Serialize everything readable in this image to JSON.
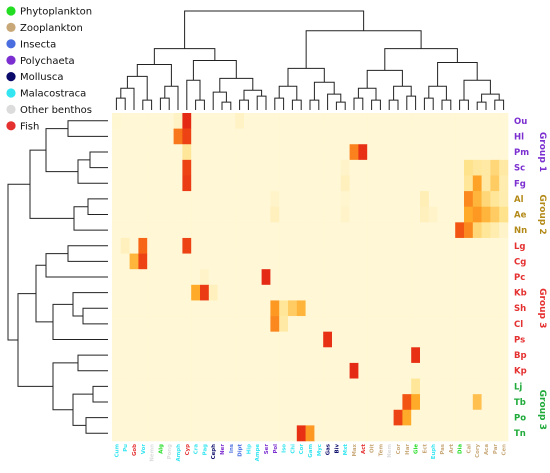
{
  "legend": [
    {
      "label": "Phytoplankton",
      "color": "#22dd22"
    },
    {
      "label": "Zooplankton",
      "color": "#c8a878"
    },
    {
      "label": "Insecta",
      "color": "#4a6ee0"
    },
    {
      "label": "Polychaeta",
      "color": "#7b2fd0"
    },
    {
      "label": "Mollusca",
      "color": "#0a0a6a"
    },
    {
      "label": "Malacostraca",
      "color": "#33e5f0"
    },
    {
      "label": "Other benthos",
      "color": "#dcdcdc"
    },
    {
      "label": "Fish",
      "color": "#e53030"
    }
  ],
  "chart_data": {
    "type": "heatmap",
    "title": "",
    "xlabel": "",
    "ylabel": "",
    "grid": false,
    "columns": [
      {
        "label": "Cum",
        "group": "Malacostraca"
      },
      {
        "label": "Pu",
        "group": "Malacostraca"
      },
      {
        "label": "Gob",
        "group": "Fish"
      },
      {
        "label": "Vor",
        "group": "Malacostraca"
      },
      {
        "label": "Nemn",
        "group": "Other benthos"
      },
      {
        "label": "Alg",
        "group": "Phytoplankton"
      },
      {
        "label": "Pong",
        "group": "Other benthos"
      },
      {
        "label": "Amph",
        "group": "Malacostraca"
      },
      {
        "label": "Cyp",
        "group": "Fish"
      },
      {
        "label": "Cra",
        "group": "Malacostraca"
      },
      {
        "label": "Pag",
        "group": "Malacostraca"
      },
      {
        "label": "Ceph",
        "group": "Mollusca"
      },
      {
        "label": "Ner",
        "group": "Polychaeta"
      },
      {
        "label": "Ins",
        "group": "Insecta"
      },
      {
        "label": "Dipt",
        "group": "Insecta"
      },
      {
        "label": "Hip",
        "group": "Malacostraca"
      },
      {
        "label": "Ampe",
        "group": "Malacostraca"
      },
      {
        "label": "Ser",
        "group": "Polychaeta"
      },
      {
        "label": "Pol",
        "group": "Polychaeta"
      },
      {
        "label": "Iso",
        "group": "Malacostraca"
      },
      {
        "label": "Chi",
        "group": "Malacostraca"
      },
      {
        "label": "Cor",
        "group": "Malacostraca"
      },
      {
        "label": "Gam",
        "group": "Malacostraca"
      },
      {
        "label": "Myc",
        "group": "Malacostraca"
      },
      {
        "label": "Gas",
        "group": "Mollusca"
      },
      {
        "label": "Biv",
        "group": "Mollusca"
      },
      {
        "label": "Mxt",
        "group": "Malacostraca"
      },
      {
        "label": "Max",
        "group": "Zooplankton"
      },
      {
        "label": "Act",
        "group": "Fish"
      },
      {
        "label": "Oit",
        "group": "Zooplankton"
      },
      {
        "label": "Tem",
        "group": "Zooplankton"
      },
      {
        "label": "Nem",
        "group": "Other benthos"
      },
      {
        "label": "Cor",
        "group": "Zooplankton"
      },
      {
        "label": "Har",
        "group": "Zooplankton"
      },
      {
        "label": "Gle",
        "group": "Phytoplankton"
      },
      {
        "label": "Ect",
        "group": "Zooplankton"
      },
      {
        "label": "Euph",
        "group": "Malacostraca"
      },
      {
        "label": "Pas",
        "group": "Zooplankton"
      },
      {
        "label": "Art",
        "group": "Zooplankton"
      },
      {
        "label": "Dia",
        "group": "Phytoplankton"
      },
      {
        "label": "Cal",
        "group": "Zooplankton"
      },
      {
        "label": "Cory",
        "group": "Zooplankton"
      },
      {
        "label": "Aca",
        "group": "Zooplankton"
      },
      {
        "label": "Par",
        "group": "Zooplankton"
      },
      {
        "label": "Cen",
        "group": "Zooplankton"
      }
    ],
    "rows": [
      {
        "label": "Ou",
        "color": "#7b2fd0"
      },
      {
        "label": "Hl",
        "color": "#7b2fd0"
      },
      {
        "label": "Pm",
        "color": "#7b2fd0"
      },
      {
        "label": "Sc",
        "color": "#7b2fd0"
      },
      {
        "label": "Fg",
        "color": "#7b2fd0"
      },
      {
        "label": "Al",
        "color": "#b38a18"
      },
      {
        "label": "Ae",
        "color": "#b38a18"
      },
      {
        "label": "Nn",
        "color": "#b38a18"
      },
      {
        "label": "Lg",
        "color": "#e53030"
      },
      {
        "label": "Cg",
        "color": "#e53030"
      },
      {
        "label": "Pc",
        "color": "#e53030"
      },
      {
        "label": "Kb",
        "color": "#e53030"
      },
      {
        "label": "Sh",
        "color": "#e53030"
      },
      {
        "label": "Cl",
        "color": "#e53030"
      },
      {
        "label": "Ps",
        "color": "#e53030"
      },
      {
        "label": "Bp",
        "color": "#e53030"
      },
      {
        "label": "Kp",
        "color": "#e53030"
      },
      {
        "label": "Lj",
        "color": "#1faa3a"
      },
      {
        "label": "Tb",
        "color": "#1faa3a"
      },
      {
        "label": "Po",
        "color": "#1faa3a"
      },
      {
        "label": "Tn",
        "color": "#1faa3a"
      }
    ],
    "row_groups": [
      {
        "label": "Group 1",
        "color": "#7b2fd0",
        "from": 0,
        "to": 4
      },
      {
        "label": "Group 2",
        "color": "#b38a18",
        "from": 5,
        "to": 7
      },
      {
        "label": "Group 3",
        "color": "#e53030",
        "from": 8,
        "to": 16
      },
      {
        "label": "Group 3",
        "color": "#1faa3a",
        "from": 17,
        "to": 20
      }
    ],
    "values": [
      [
        0.06,
        0.05,
        0.05,
        0.05,
        0.05,
        0.05,
        0.05,
        0.12,
        0.97,
        0.05,
        0.05,
        0.05,
        0.05,
        0.05,
        0.12,
        0.05,
        0.05,
        0.05,
        0.05,
        0.05,
        0.05,
        0.05,
        0.05,
        0.05,
        0.05,
        0.05,
        0.05,
        0.05,
        0.05,
        0.05,
        0.05,
        0.05,
        0.05,
        0.05,
        0.05,
        0.05,
        0.05,
        0.05,
        0.05,
        0.05,
        0.05,
        0.05,
        0.05,
        0.05,
        0.05
      ],
      [
        0.05,
        0.05,
        0.05,
        0.05,
        0.05,
        0.05,
        0.05,
        0.75,
        0.9,
        0.05,
        0.05,
        0.05,
        0.05,
        0.05,
        0.05,
        0.05,
        0.05,
        0.05,
        0.05,
        0.05,
        0.05,
        0.05,
        0.05,
        0.05,
        0.05,
        0.05,
        0.05,
        0.05,
        0.05,
        0.05,
        0.05,
        0.05,
        0.05,
        0.05,
        0.05,
        0.05,
        0.05,
        0.05,
        0.05,
        0.05,
        0.05,
        0.05,
        0.05,
        0.05,
        0.05
      ],
      [
        0.05,
        0.05,
        0.05,
        0.05,
        0.05,
        0.05,
        0.05,
        0.05,
        0.3,
        0.05,
        0.05,
        0.05,
        0.05,
        0.05,
        0.05,
        0.05,
        0.05,
        0.05,
        0.05,
        0.05,
        0.05,
        0.05,
        0.05,
        0.05,
        0.05,
        0.05,
        0.05,
        0.72,
        0.95,
        0.05,
        0.05,
        0.05,
        0.05,
        0.05,
        0.05,
        0.05,
        0.05,
        0.05,
        0.05,
        0.05,
        0.05,
        0.05,
        0.05,
        0.05,
        0.05
      ],
      [
        0.05,
        0.05,
        0.05,
        0.05,
        0.05,
        0.05,
        0.05,
        0.05,
        0.9,
        0.05,
        0.05,
        0.05,
        0.05,
        0.05,
        0.05,
        0.05,
        0.05,
        0.05,
        0.05,
        0.05,
        0.05,
        0.05,
        0.05,
        0.05,
        0.05,
        0.05,
        0.1,
        0.05,
        0.05,
        0.05,
        0.05,
        0.05,
        0.05,
        0.05,
        0.05,
        0.05,
        0.05,
        0.05,
        0.05,
        0.05,
        0.35,
        0.28,
        0.25,
        0.4,
        0.25
      ],
      [
        0.05,
        0.05,
        0.05,
        0.05,
        0.05,
        0.05,
        0.05,
        0.05,
        0.92,
        0.05,
        0.05,
        0.05,
        0.05,
        0.05,
        0.05,
        0.05,
        0.05,
        0.05,
        0.05,
        0.05,
        0.05,
        0.05,
        0.05,
        0.05,
        0.05,
        0.05,
        0.15,
        0.05,
        0.05,
        0.05,
        0.05,
        0.05,
        0.05,
        0.05,
        0.05,
        0.05,
        0.05,
        0.05,
        0.05,
        0.05,
        0.3,
        0.62,
        0.25,
        0.45,
        0.2
      ],
      [
        0.05,
        0.05,
        0.05,
        0.05,
        0.05,
        0.05,
        0.05,
        0.05,
        0.05,
        0.05,
        0.05,
        0.05,
        0.05,
        0.05,
        0.05,
        0.05,
        0.05,
        0.05,
        0.1,
        0.05,
        0.05,
        0.05,
        0.05,
        0.05,
        0.05,
        0.05,
        0.08,
        0.05,
        0.05,
        0.05,
        0.05,
        0.05,
        0.05,
        0.05,
        0.05,
        0.18,
        0.05,
        0.05,
        0.05,
        0.05,
        0.7,
        0.55,
        0.4,
        0.3,
        0.2
      ],
      [
        0.05,
        0.05,
        0.05,
        0.05,
        0.05,
        0.05,
        0.05,
        0.05,
        0.05,
        0.05,
        0.05,
        0.05,
        0.05,
        0.05,
        0.05,
        0.05,
        0.05,
        0.05,
        0.15,
        0.05,
        0.05,
        0.05,
        0.05,
        0.05,
        0.05,
        0.05,
        0.1,
        0.05,
        0.05,
        0.05,
        0.05,
        0.05,
        0.05,
        0.05,
        0.05,
        0.15,
        0.1,
        0.05,
        0.05,
        0.05,
        0.6,
        0.65,
        0.55,
        0.45,
        0.35
      ],
      [
        0.05,
        0.05,
        0.05,
        0.05,
        0.05,
        0.05,
        0.05,
        0.05,
        0.05,
        0.05,
        0.05,
        0.05,
        0.05,
        0.05,
        0.05,
        0.05,
        0.05,
        0.05,
        0.05,
        0.05,
        0.05,
        0.05,
        0.05,
        0.05,
        0.05,
        0.05,
        0.05,
        0.05,
        0.05,
        0.05,
        0.05,
        0.05,
        0.05,
        0.05,
        0.05,
        0.05,
        0.05,
        0.05,
        0.05,
        0.85,
        0.7,
        0.4,
        0.3,
        0.2,
        0.1
      ],
      [
        0.05,
        0.15,
        0.05,
        0.8,
        0.05,
        0.05,
        0.05,
        0.05,
        0.9,
        0.05,
        0.05,
        0.05,
        0.05,
        0.05,
        0.05,
        0.05,
        0.05,
        0.05,
        0.05,
        0.05,
        0.05,
        0.05,
        0.05,
        0.05,
        0.05,
        0.05,
        0.05,
        0.05,
        0.05,
        0.05,
        0.05,
        0.05,
        0.05,
        0.05,
        0.05,
        0.05,
        0.05,
        0.05,
        0.05,
        0.05,
        0.05,
        0.05,
        0.05,
        0.05,
        0.05
      ],
      [
        0.05,
        0.05,
        0.55,
        0.9,
        0.05,
        0.05,
        0.05,
        0.05,
        0.05,
        0.05,
        0.05,
        0.05,
        0.05,
        0.05,
        0.05,
        0.05,
        0.05,
        0.05,
        0.05,
        0.05,
        0.05,
        0.05,
        0.05,
        0.05,
        0.05,
        0.05,
        0.05,
        0.05,
        0.05,
        0.05,
        0.05,
        0.05,
        0.05,
        0.05,
        0.05,
        0.05,
        0.05,
        0.05,
        0.05,
        0.05,
        0.05,
        0.05,
        0.05,
        0.05,
        0.05
      ],
      [
        0.05,
        0.05,
        0.05,
        0.05,
        0.05,
        0.05,
        0.05,
        0.05,
        0.05,
        0.05,
        0.1,
        0.05,
        0.05,
        0.05,
        0.05,
        0.05,
        0.05,
        0.97,
        0.05,
        0.05,
        0.05,
        0.05,
        0.05,
        0.05,
        0.05,
        0.05,
        0.05,
        0.05,
        0.05,
        0.05,
        0.05,
        0.05,
        0.05,
        0.05,
        0.05,
        0.05,
        0.05,
        0.05,
        0.05,
        0.05,
        0.05,
        0.05,
        0.05,
        0.05,
        0.05
      ],
      [
        0.05,
        0.05,
        0.05,
        0.05,
        0.05,
        0.05,
        0.05,
        0.05,
        0.05,
        0.6,
        0.92,
        0.15,
        0.05,
        0.05,
        0.05,
        0.05,
        0.05,
        0.05,
        0.05,
        0.05,
        0.05,
        0.05,
        0.05,
        0.05,
        0.05,
        0.05,
        0.05,
        0.05,
        0.05,
        0.05,
        0.05,
        0.05,
        0.05,
        0.05,
        0.05,
        0.05,
        0.05,
        0.05,
        0.05,
        0.05,
        0.05,
        0.05,
        0.05,
        0.05,
        0.05
      ],
      [
        0.05,
        0.05,
        0.05,
        0.05,
        0.05,
        0.05,
        0.05,
        0.05,
        0.05,
        0.05,
        0.05,
        0.05,
        0.05,
        0.05,
        0.05,
        0.05,
        0.05,
        0.05,
        0.65,
        0.3,
        0.45,
        0.55,
        0.05,
        0.05,
        0.05,
        0.05,
        0.05,
        0.05,
        0.05,
        0.05,
        0.05,
        0.05,
        0.05,
        0.05,
        0.05,
        0.05,
        0.05,
        0.05,
        0.05,
        0.05,
        0.05,
        0.05,
        0.05,
        0.05,
        0.05
      ],
      [
        0.05,
        0.05,
        0.05,
        0.05,
        0.05,
        0.05,
        0.05,
        0.05,
        0.05,
        0.05,
        0.05,
        0.05,
        0.05,
        0.05,
        0.05,
        0.05,
        0.05,
        0.05,
        0.7,
        0.25,
        0.05,
        0.05,
        0.05,
        0.05,
        0.05,
        0.05,
        0.05,
        0.05,
        0.05,
        0.05,
        0.05,
        0.05,
        0.05,
        0.05,
        0.05,
        0.05,
        0.05,
        0.05,
        0.05,
        0.05,
        0.05,
        0.05,
        0.05,
        0.05,
        0.05
      ],
      [
        0.05,
        0.05,
        0.05,
        0.05,
        0.05,
        0.05,
        0.05,
        0.05,
        0.05,
        0.05,
        0.05,
        0.05,
        0.05,
        0.05,
        0.05,
        0.05,
        0.05,
        0.05,
        0.05,
        0.05,
        0.05,
        0.05,
        0.05,
        0.05,
        0.95,
        0.05,
        0.05,
        0.05,
        0.05,
        0.05,
        0.05,
        0.05,
        0.05,
        0.05,
        0.05,
        0.05,
        0.05,
        0.05,
        0.05,
        0.05,
        0.05,
        0.05,
        0.05,
        0.05,
        0.05
      ],
      [
        0.05,
        0.05,
        0.05,
        0.05,
        0.05,
        0.05,
        0.05,
        0.05,
        0.05,
        0.05,
        0.05,
        0.05,
        0.05,
        0.05,
        0.05,
        0.05,
        0.05,
        0.05,
        0.05,
        0.05,
        0.05,
        0.05,
        0.05,
        0.05,
        0.05,
        0.05,
        0.05,
        0.05,
        0.05,
        0.05,
        0.05,
        0.05,
        0.05,
        0.05,
        0.95,
        0.05,
        0.05,
        0.05,
        0.05,
        0.05,
        0.05,
        0.05,
        0.05,
        0.05,
        0.05
      ],
      [
        0.05,
        0.05,
        0.05,
        0.05,
        0.05,
        0.05,
        0.05,
        0.05,
        0.05,
        0.05,
        0.05,
        0.05,
        0.05,
        0.05,
        0.05,
        0.05,
        0.05,
        0.05,
        0.05,
        0.05,
        0.05,
        0.05,
        0.05,
        0.05,
        0.05,
        0.05,
        0.05,
        0.97,
        0.05,
        0.05,
        0.05,
        0.05,
        0.05,
        0.05,
        0.05,
        0.05,
        0.05,
        0.05,
        0.05,
        0.05,
        0.05,
        0.05,
        0.05,
        0.05,
        0.05
      ],
      [
        0.05,
        0.05,
        0.05,
        0.05,
        0.05,
        0.05,
        0.05,
        0.05,
        0.05,
        0.05,
        0.05,
        0.05,
        0.05,
        0.05,
        0.05,
        0.05,
        0.05,
        0.05,
        0.05,
        0.05,
        0.05,
        0.05,
        0.05,
        0.05,
        0.05,
        0.05,
        0.05,
        0.05,
        0.05,
        0.05,
        0.05,
        0.05,
        0.05,
        0.05,
        0.3,
        0.05,
        0.05,
        0.05,
        0.05,
        0.05,
        0.05,
        0.05,
        0.05,
        0.05,
        0.05
      ],
      [
        0.05,
        0.05,
        0.05,
        0.05,
        0.05,
        0.05,
        0.05,
        0.05,
        0.05,
        0.05,
        0.05,
        0.05,
        0.05,
        0.05,
        0.05,
        0.05,
        0.05,
        0.05,
        0.05,
        0.05,
        0.05,
        0.05,
        0.05,
        0.05,
        0.05,
        0.05,
        0.05,
        0.05,
        0.05,
        0.05,
        0.05,
        0.05,
        0.05,
        0.85,
        0.6,
        0.05,
        0.05,
        0.05,
        0.05,
        0.05,
        0.05,
        0.5,
        0.05,
        0.05,
        0.05
      ],
      [
        0.05,
        0.05,
        0.05,
        0.05,
        0.05,
        0.05,
        0.05,
        0.05,
        0.05,
        0.05,
        0.05,
        0.05,
        0.05,
        0.05,
        0.05,
        0.05,
        0.05,
        0.05,
        0.05,
        0.05,
        0.05,
        0.05,
        0.05,
        0.05,
        0.05,
        0.05,
        0.05,
        0.05,
        0.05,
        0.05,
        0.05,
        0.05,
        0.9,
        0.6,
        0.05,
        0.05,
        0.05,
        0.05,
        0.05,
        0.05,
        0.05,
        0.05,
        0.05,
        0.05,
        0.05
      ],
      [
        0.05,
        0.05,
        0.05,
        0.05,
        0.05,
        0.05,
        0.05,
        0.05,
        0.05,
        0.05,
        0.05,
        0.05,
        0.05,
        0.05,
        0.05,
        0.05,
        0.05,
        0.05,
        0.05,
        0.05,
        0.05,
        0.95,
        0.65,
        0.05,
        0.05,
        0.05,
        0.05,
        0.05,
        0.05,
        0.05,
        0.05,
        0.05,
        0.05,
        0.05,
        0.05,
        0.05,
        0.05,
        0.05,
        0.05,
        0.05,
        0.05,
        0.05,
        0.05,
        0.05,
        0.05
      ]
    ]
  }
}
